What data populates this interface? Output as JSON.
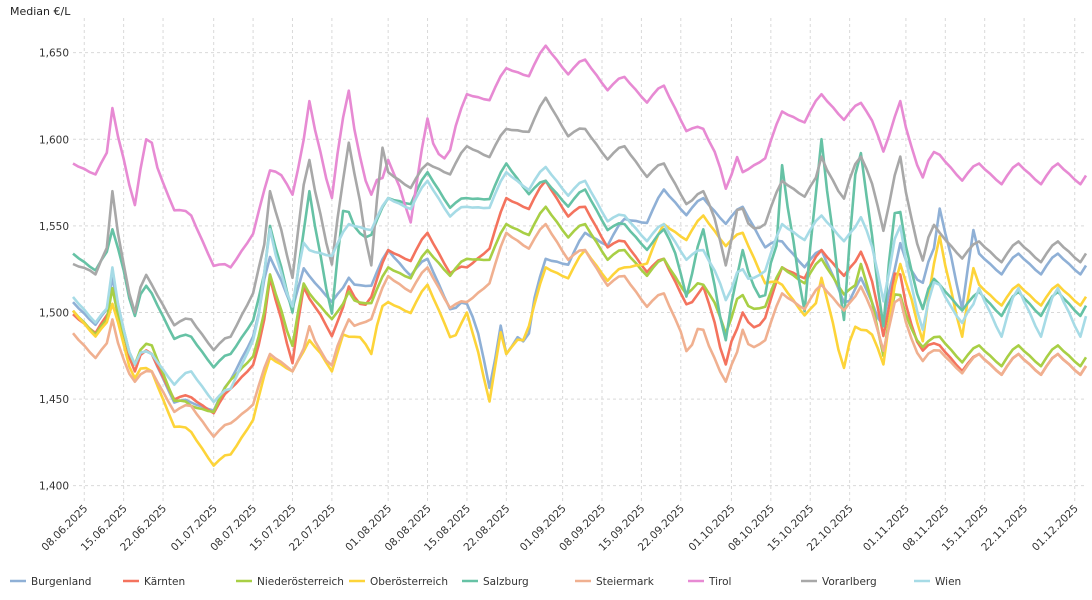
{
  "chart_data": {
    "type": "line",
    "ylabel": "Median €/L",
    "ylim": [
      1.39,
      1.67
    ],
    "y_ticks": [
      1.4,
      1.45,
      1.5,
      1.55,
      1.6,
      1.65
    ],
    "y_tick_labels": [
      "1,400",
      "1,450",
      "1,500",
      "1,550",
      "1,600",
      "1,650"
    ],
    "x_start": "2025-06-06",
    "x_end": "2025-12-03",
    "x_ticks": [
      "2025-06-08",
      "2025-06-15",
      "2025-06-22",
      "2025-07-01",
      "2025-07-08",
      "2025-07-15",
      "2025-07-22",
      "2025-08-01",
      "2025-08-08",
      "2025-08-15",
      "2025-08-22",
      "2025-09-01",
      "2025-09-08",
      "2025-09-15",
      "2025-09-22",
      "2025-10-01",
      "2025-10-08",
      "2025-10-15",
      "2025-10-22",
      "2025-11-01",
      "2025-11-08",
      "2025-11-15",
      "2025-11-22",
      "2025-12-01"
    ],
    "x_tick_labels": [
      "08.06.2025",
      "15.06.2025",
      "22.06.2025",
      "01.07.2025",
      "08.07.2025",
      "15.07.2025",
      "22.07.2025",
      "01.08.2025",
      "08.08.2025",
      "15.08.2025",
      "22.08.2025",
      "01.09.2025",
      "08.09.2025",
      "15.09.2025",
      "22.09.2025",
      "01.10.2025",
      "08.10.2025",
      "15.10.2025",
      "22.10.2025",
      "01.11.2025",
      "08.11.2025",
      "15.11.2025",
      "22.11.2025",
      "01.12.2025"
    ],
    "grid": true,
    "legend_position": "bottom",
    "series": [
      {
        "name": "Burgenland",
        "color": "#8fb0d6",
        "start": [
          1.5,
          1.498,
          1.47,
          1.442,
          1.455,
          1.52,
          1.515,
          1.51,
          1.53,
          1.525,
          1.495,
          1.47,
          1.525,
          1.54,
          1.548,
          1.565,
          1.56,
          1.555,
          1.535,
          1.53,
          1.5,
          1.52,
          1.535,
          1.528
        ],
        "min": [
          1.495,
          1.47,
          1.478,
          1.482,
          1.488,
          1.48,
          1.47,
          1.48,
          1.47,
          1.445,
          1.44,
          1.475,
          1.47,
          1.46,
          1.47,
          1.465,
          1.475,
          1.465,
          1.46,
          1.47,
          1.48,
          1.485,
          1.49,
          1.484
        ],
        "max": [
          1.505,
          1.52,
          1.555,
          1.536,
          1.525,
          1.532,
          1.512,
          1.52,
          1.518,
          1.51,
          1.505,
          1.515,
          1.52,
          1.525,
          1.53,
          1.528,
          1.525,
          1.515,
          1.52,
          1.52,
          1.53,
          1.54,
          1.56,
          1.52
        ]
      },
      {
        "name": "Kärnten",
        "color": "#f4735e",
        "start": [
          1.493,
          1.495,
          1.47,
          1.445,
          1.45,
          1.495,
          1.5,
          1.495,
          1.53,
          1.54,
          1.52,
          1.56,
          1.57,
          1.555,
          1.535,
          1.525,
          1.5,
          1.48,
          1.52,
          1.53,
          1.525,
          1.5,
          1.475,
          1.47
        ],
        "min": [
          1.493,
          1.466,
          1.482,
          1.472,
          1.476,
          1.47,
          1.46,
          1.475,
          1.465,
          1.45,
          1.44,
          1.47,
          1.47,
          1.46,
          1.465,
          1.458,
          1.47,
          1.46,
          1.455,
          1.468,
          1.472,
          1.478,
          1.482,
          1.48
        ],
        "max": [
          1.5,
          1.504,
          1.55,
          1.536,
          1.528,
          1.525,
          1.508,
          1.52,
          1.505,
          1.505,
          1.5,
          1.51,
          1.505,
          1.515,
          1.52,
          1.515,
          1.515,
          1.505,
          1.51,
          1.51,
          1.535,
          1.55,
          1.58,
          1.51
        ]
      },
      {
        "name": "Niederösterreich",
        "color": "#a8cf45",
        "start": [
          1.495,
          1.492,
          1.475,
          1.44,
          1.455,
          1.5,
          1.505,
          1.5,
          1.52,
          1.53,
          1.525,
          1.545,
          1.555,
          1.545,
          1.53,
          1.525,
          1.51,
          1.495,
          1.52,
          1.525,
          1.51,
          1.495,
          1.48,
          1.475
        ],
        "min": [
          1.496,
          1.47,
          1.478,
          1.478,
          1.482,
          1.478,
          1.47,
          1.48,
          1.468,
          1.44,
          1.45,
          1.472,
          1.45,
          1.462,
          1.468,
          1.462,
          1.47,
          1.462,
          1.45,
          1.47,
          1.475,
          1.48,
          1.488,
          1.478
        ],
        "max": [
          1.502,
          1.515,
          1.55,
          1.532,
          1.528,
          1.525,
          1.508,
          1.512,
          1.505,
          1.502,
          1.502,
          1.512,
          1.512,
          1.515,
          1.52,
          1.52,
          1.515,
          1.51,
          1.51,
          1.515,
          1.528,
          1.54,
          1.56,
          1.505
        ]
      },
      {
        "name": "Oberösterreich",
        "color": "#fdd439",
        "start": [
          1.495,
          1.49,
          1.46,
          1.425,
          1.412,
          1.468,
          1.475,
          1.48,
          1.5,
          1.51,
          1.48,
          1.47,
          1.52,
          1.53,
          1.52,
          1.545,
          1.55,
          1.54,
          1.51,
          1.5,
          1.48,
          1.505,
          1.515,
          1.51
        ],
        "min": [
          1.495,
          1.462,
          1.474,
          1.474,
          1.48,
          1.476,
          1.466,
          1.476,
          1.465,
          1.432,
          1.44,
          1.47,
          1.46,
          1.458,
          1.466,
          1.46,
          1.445,
          1.46,
          1.455,
          1.468,
          1.47,
          1.482,
          1.486,
          1.466
        ],
        "max": [
          1.5,
          1.505,
          1.545,
          1.528,
          1.525,
          1.52,
          1.512,
          1.508,
          1.5,
          1.5,
          1.5,
          1.505,
          1.505,
          1.51,
          1.515,
          1.512,
          1.512,
          1.502,
          1.508,
          1.52,
          1.525,
          1.538,
          1.56,
          1.5
        ]
      },
      {
        "name": "Salzburg",
        "color": "#66c2a5",
        "start": [
          1.528,
          1.532,
          1.505,
          1.48,
          1.47,
          1.525,
          1.53,
          1.54,
          1.56,
          1.575,
          1.56,
          1.58,
          1.57,
          1.565,
          1.545,
          1.54,
          1.52,
          1.505,
          1.54,
          1.545,
          1.55,
          1.53,
          1.51,
          1.505
        ],
        "min": [
          1.528,
          1.498,
          1.502,
          1.5,
          1.508,
          1.5,
          1.49,
          1.498,
          1.482,
          1.46,
          1.47,
          1.49,
          1.47,
          1.472,
          1.482,
          1.476,
          1.484,
          1.474,
          1.47,
          1.488,
          1.492,
          1.502,
          1.508,
          1.498
        ],
        "max": [
          1.535,
          1.548,
          1.586,
          1.592,
          1.59,
          1.588,
          1.572,
          1.558,
          1.556,
          1.562,
          1.56,
          1.525,
          1.54,
          1.548,
          1.548,
          1.548,
          1.548,
          1.54,
          1.585,
          1.6,
          1.592,
          1.595,
          1.6,
          1.548
        ]
      },
      {
        "name": "Steiermark",
        "color": "#f0b090",
        "start": [
          1.482,
          1.478,
          1.46,
          1.44,
          1.43,
          1.47,
          1.475,
          1.485,
          1.515,
          1.52,
          1.5,
          1.54,
          1.545,
          1.53,
          1.515,
          1.505,
          1.475,
          1.47,
          1.505,
          1.51,
          1.505,
          1.49,
          1.472,
          1.47
        ],
        "min": [
          1.482,
          1.46,
          1.466,
          1.466,
          1.47,
          1.466,
          1.456,
          1.466,
          1.452,
          1.428,
          1.432,
          1.462,
          1.455,
          1.452,
          1.458,
          1.452,
          1.46,
          1.448,
          1.446,
          1.458,
          1.462,
          1.472,
          1.474,
          1.47
        ],
        "max": [
          1.486,
          1.5,
          1.536,
          1.508,
          1.506,
          1.498,
          1.492,
          1.496,
          1.488,
          1.49,
          1.492,
          1.494,
          1.492,
          1.5,
          1.5,
          1.498,
          1.498,
          1.49,
          1.5,
          1.502,
          1.515,
          1.53,
          1.538,
          1.49
        ]
      },
      {
        "name": "Tirol",
        "color": "#e78ad3",
        "start": [
          1.58,
          1.59,
          1.585,
          1.55,
          1.52,
          1.575,
          1.59,
          1.598,
          1.57,
          1.58,
          1.62,
          1.635,
          1.648,
          1.64,
          1.63,
          1.625,
          1.6,
          1.575,
          1.61,
          1.62,
          1.615,
          1.6,
          1.585,
          1.58
        ],
        "min": [
          1.58,
          1.562,
          1.572,
          1.568,
          1.574,
          1.568,
          1.558,
          1.568,
          1.552,
          1.53,
          1.532,
          1.562,
          1.552,
          1.552,
          1.56,
          1.552,
          1.56,
          1.55,
          1.55,
          1.565,
          1.568,
          1.578,
          1.582,
          1.566
        ],
        "max": [
          1.59,
          1.622,
          1.65,
          1.645,
          1.64,
          1.633,
          1.623,
          1.649,
          1.62,
          1.612,
          1.615,
          1.61,
          1.605,
          1.6,
          1.59,
          1.59,
          1.6,
          1.58,
          1.57,
          1.61,
          1.62,
          1.622,
          1.63,
          1.58
        ]
      },
      {
        "name": "Vorarlberg",
        "color": "#a8a8a8",
        "start": [
          1.522,
          1.535,
          1.51,
          1.49,
          1.48,
          1.545,
          1.555,
          1.56,
          1.575,
          1.58,
          1.59,
          1.6,
          1.618,
          1.6,
          1.59,
          1.58,
          1.56,
          1.54,
          1.57,
          1.575,
          1.58,
          1.56,
          1.54,
          1.535
        ],
        "min": [
          1.522,
          1.5,
          1.52,
          1.522,
          1.53,
          1.52,
          1.51,
          1.522,
          1.505,
          1.48,
          1.482,
          1.512,
          1.498,
          1.498,
          1.512,
          1.5,
          1.51,
          1.498,
          1.5,
          1.515,
          1.52,
          1.53,
          1.538,
          1.53
        ],
        "max": [
          1.54,
          1.57,
          1.618,
          1.59,
          1.595,
          1.59,
          1.588,
          1.61,
          1.57,
          1.555,
          1.56,
          1.56,
          1.56,
          1.572,
          1.58,
          1.572,
          1.57,
          1.56,
          1.57,
          1.59,
          1.59,
          1.6,
          1.608,
          1.56
        ]
      },
      {
        "name": "Wien",
        "color": "#a6dbe6",
        "start": [
          1.503,
          1.498,
          1.47,
          1.46,
          1.45,
          1.52,
          1.53,
          1.545,
          1.56,
          1.57,
          1.555,
          1.575,
          1.578,
          1.57,
          1.55,
          1.545,
          1.53,
          1.51,
          1.545,
          1.55,
          1.545,
          1.52,
          1.505,
          1.5
        ],
        "min": [
          1.503,
          1.47,
          1.482,
          1.482,
          1.488,
          1.482,
          1.47,
          1.484,
          1.466,
          1.444,
          1.428,
          1.47,
          1.464,
          1.462,
          1.47,
          1.464,
          1.472,
          1.462,
          1.458,
          1.47,
          1.478,
          1.49,
          1.494,
          1.486
        ],
        "max": [
          1.51,
          1.54,
          1.578,
          1.552,
          1.55,
          1.548,
          1.532,
          1.538,
          1.53,
          1.522,
          1.52,
          1.525,
          1.53,
          1.532,
          1.535,
          1.53,
          1.53,
          1.525,
          1.53,
          1.55,
          1.555,
          1.565,
          1.575,
          1.53
        ]
      }
    ]
  }
}
